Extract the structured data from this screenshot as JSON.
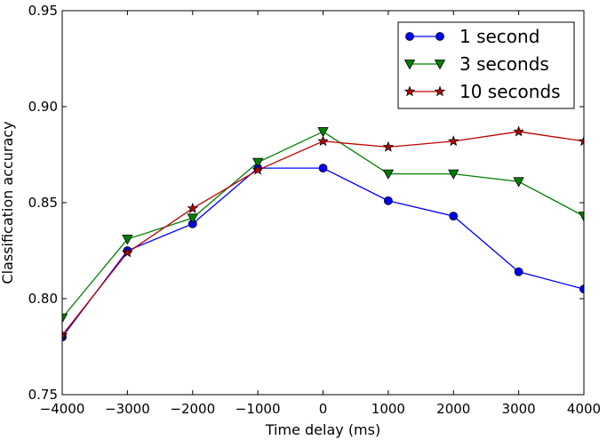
{
  "chart_data": {
    "type": "line",
    "title": "",
    "xlabel": "Time delay (ms)",
    "ylabel": "Classification accuracy",
    "xlim": [
      -4000,
      4000
    ],
    "ylim": [
      0.75,
      0.95
    ],
    "xticks": [
      -4000,
      -3000,
      -2000,
      -1000,
      0,
      1000,
      2000,
      3000,
      4000
    ],
    "xtick_labels": [
      "−4000",
      "−3000",
      "−2000",
      "−1000",
      "0",
      "1000",
      "2000",
      "3000",
      "4000"
    ],
    "yticks": [
      0.75,
      0.8,
      0.85,
      0.9,
      0.95
    ],
    "ytick_labels": [
      "0.75",
      "0.80",
      "0.85",
      "0.90",
      "0.95"
    ],
    "grid": false,
    "legend_position": "top-right",
    "x": [
      -4000,
      -3000,
      -2000,
      -1000,
      0,
      1000,
      2000,
      3000,
      4000
    ],
    "series": [
      {
        "name": "1 second",
        "color": "#0000ff",
        "marker": "circle",
        "values": [
          0.78,
          0.825,
          0.839,
          0.868,
          0.868,
          0.851,
          0.843,
          0.814,
          0.805
        ]
      },
      {
        "name": "3 seconds",
        "color": "#007f00",
        "marker": "triangle-down",
        "values": [
          0.79,
          0.831,
          0.842,
          0.871,
          0.887,
          0.865,
          0.865,
          0.861,
          0.843
        ]
      },
      {
        "name": "10 seconds",
        "color": "#bf0000",
        "marker": "star",
        "values": [
          0.781,
          0.824,
          0.847,
          0.867,
          0.882,
          0.879,
          0.882,
          0.887,
          0.882
        ]
      }
    ]
  }
}
